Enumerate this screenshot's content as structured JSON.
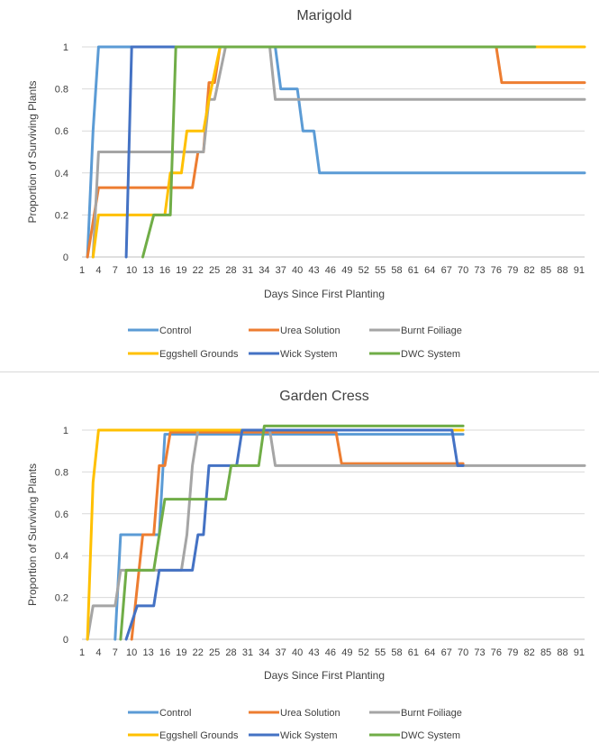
{
  "chart_data": [
    {
      "type": "line",
      "title": "Marigold",
      "xlabel": "Days Since First Planting",
      "ylabel": "Proportion of Surviving Plants",
      "xlim": [
        1,
        92
      ],
      "ylim": [
        0,
        1
      ],
      "x_ticks": [
        1,
        4,
        7,
        10,
        13,
        16,
        19,
        22,
        25,
        28,
        31,
        34,
        37,
        40,
        43,
        46,
        49,
        52,
        55,
        58,
        61,
        64,
        67,
        70,
        73,
        76,
        79,
        82,
        85,
        88,
        91
      ],
      "y_ticks": [
        0,
        0.2,
        0.4,
        0.6,
        0.8,
        1
      ],
      "y_tick_labels": [
        "0",
        "0.2",
        "0.4",
        "0.6",
        "0.8",
        "1"
      ],
      "grid": true,
      "legend_position": "bottom",
      "series": [
        {
          "name": "Control",
          "color": "#5b9bd5",
          "points": [
            [
              2,
              0
            ],
            [
              3,
              0.6
            ],
            [
              4,
              1
            ],
            [
              36,
              1
            ],
            [
              37,
              0.8
            ],
            [
              40,
              0.8
            ],
            [
              41,
              0.6
            ],
            [
              43,
              0.6
            ],
            [
              44,
              0.4
            ],
            [
              92,
              0.4
            ]
          ]
        },
        {
          "name": "Urea Solution",
          "color": "#ed7d31",
          "points": [
            [
              2,
              0
            ],
            [
              4,
              0.33
            ],
            [
              21,
              0.33
            ],
            [
              22,
              0.5
            ],
            [
              23,
              0.5
            ],
            [
              24,
              0.83
            ],
            [
              25,
              0.83
            ],
            [
              26,
              1
            ],
            [
              76,
              1
            ],
            [
              77,
              0.83
            ],
            [
              92,
              0.83
            ]
          ]
        },
        {
          "name": "Burnt Foiliage",
          "color": "#a5a5a5",
          "points": [
            [
              3,
              0
            ],
            [
              4,
              0.5
            ],
            [
              23,
              0.5
            ],
            [
              24,
              0.75
            ],
            [
              25,
              0.75
            ],
            [
              27,
              1
            ],
            [
              35,
              1
            ],
            [
              36,
              0.75
            ],
            [
              92,
              0.75
            ]
          ]
        },
        {
          "name": "Eggshell Grounds",
          "color": "#ffc000",
          "points": [
            [
              3,
              0
            ],
            [
              4,
              0.2
            ],
            [
              16,
              0.2
            ],
            [
              17,
              0.4
            ],
            [
              19,
              0.4
            ],
            [
              20,
              0.6
            ],
            [
              23,
              0.6
            ],
            [
              24,
              0.75
            ],
            [
              26,
              1
            ],
            [
              92,
              1
            ]
          ]
        },
        {
          "name": "Wick System",
          "color": "#4472c4",
          "points": [
            [
              9,
              0
            ],
            [
              10,
              1
            ],
            [
              70,
              1
            ]
          ]
        },
        {
          "name": "DWC System",
          "color": "#70ad47",
          "points": [
            [
              12,
              0
            ],
            [
              14,
              0.2
            ],
            [
              17,
              0.2
            ],
            [
              18,
              1
            ],
            [
              83,
              1
            ]
          ]
        }
      ]
    },
    {
      "type": "line",
      "title": "Garden Cress",
      "xlabel": "Days Since First Planting",
      "ylabel": "Proportion of Surviving Plants",
      "xlim": [
        1,
        92
      ],
      "ylim": [
        0,
        1
      ],
      "x_ticks": [
        1,
        4,
        7,
        10,
        13,
        16,
        19,
        22,
        25,
        28,
        31,
        34,
        37,
        40,
        43,
        46,
        49,
        52,
        55,
        58,
        61,
        64,
        67,
        70,
        73,
        76,
        79,
        82,
        85,
        88,
        91
      ],
      "y_ticks": [
        0,
        0.2,
        0.4,
        0.6,
        0.8,
        1
      ],
      "y_tick_labels": [
        "0",
        "0.2",
        "0.4",
        "0.6",
        "0.8",
        "1"
      ],
      "grid": true,
      "legend_position": "bottom",
      "series": [
        {
          "name": "Control",
          "color": "#5b9bd5",
          "points": [
            [
              7,
              0
            ],
            [
              8,
              0.5
            ],
            [
              15,
              0.5
            ],
            [
              16,
              0.98
            ],
            [
              70,
              0.98
            ]
          ]
        },
        {
          "name": "Urea Solution",
          "color": "#ed7d31",
          "points": [
            [
              10,
              0
            ],
            [
              12,
              0.5
            ],
            [
              14,
              0.5
            ],
            [
              15,
              0.83
            ],
            [
              16,
              0.83
            ],
            [
              17,
              0.99
            ],
            [
              47,
              0.99
            ],
            [
              48,
              0.84
            ],
            [
              70,
              0.84
            ]
          ]
        },
        {
          "name": "Burnt Foiliage",
          "color": "#a5a5a5",
          "points": [
            [
              2,
              0
            ],
            [
              3,
              0.16
            ],
            [
              7,
              0.16
            ],
            [
              8,
              0.33
            ],
            [
              19,
              0.33
            ],
            [
              20,
              0.5
            ],
            [
              21,
              0.83
            ],
            [
              22,
              1
            ],
            [
              35,
              1
            ],
            [
              36,
              0.83
            ],
            [
              92,
              0.83
            ]
          ]
        },
        {
          "name": "Eggshell Grounds",
          "color": "#ffc000",
          "points": [
            [
              2,
              0
            ],
            [
              3,
              0.75
            ],
            [
              4,
              1
            ],
            [
              70,
              1
            ]
          ]
        },
        {
          "name": "Wick System",
          "color": "#4472c4",
          "points": [
            [
              9,
              0
            ],
            [
              11,
              0.16
            ],
            [
              14,
              0.16
            ],
            [
              15,
              0.33
            ],
            [
              21,
              0.33
            ],
            [
              22,
              0.5
            ],
            [
              23,
              0.5
            ],
            [
              24,
              0.83
            ],
            [
              29,
              0.83
            ],
            [
              30,
              1
            ],
            [
              68,
              1
            ],
            [
              69,
              0.83
            ],
            [
              70,
              0.83
            ]
          ]
        },
        {
          "name": "DWC System",
          "color": "#70ad47",
          "points": [
            [
              8,
              0
            ],
            [
              9,
              0.33
            ],
            [
              14,
              0.33
            ],
            [
              16,
              0.67
            ],
            [
              27,
              0.67
            ],
            [
              28,
              0.83
            ],
            [
              33,
              0.83
            ],
            [
              34,
              1.02
            ],
            [
              70,
              1.02
            ]
          ]
        }
      ]
    }
  ]
}
